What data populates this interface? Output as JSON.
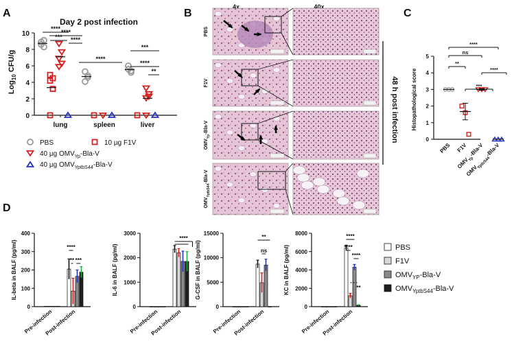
{
  "colors": {
    "gray": "#9a9a9a",
    "red": "#d62020",
    "blue": "#2030c8",
    "green": "#20b040",
    "tissue": "#d9b2c8",
    "tissue_dark": "#b46a9c"
  },
  "panels": {
    "A": "A",
    "B": "B",
    "C": "C",
    "D": "D"
  },
  "panel_a": {
    "title": "Day 2 post infection",
    "ylabel": "Log",
    "ylabel_sub": "10",
    "ylabel_tail": " CFU/g",
    "yticks": [
      "0",
      "2",
      "4",
      "6",
      "8",
      "10"
    ],
    "categories": [
      "lung",
      "spleen",
      "liver"
    ],
    "sig": [
      "****",
      "***",
      "****",
      "****",
      "****",
      "***",
      "****",
      "**"
    ],
    "legend": [
      {
        "label": "PBS"
      },
      {
        "label": "10 µg F1V"
      },
      {
        "label": "40 µg OMV",
        "sub": "Yp",
        "tail": "-Bla-V"
      },
      {
        "label": "40 µg OMV",
        "sub": "YptbS44",
        "tail": "-Bla-V"
      }
    ]
  },
  "panel_b": {
    "col_headers": [
      "4x",
      "40x"
    ],
    "row_labels": [
      "PBS",
      "F1V",
      "OMV",
      "OMV"
    ],
    "row_label_subs": [
      "",
      "",
      "Yp",
      "YptbS44"
    ],
    "row_label_tails": [
      "",
      "",
      "-Bla-V",
      "-Bla-V"
    ],
    "side_label": "48 h post infection"
  },
  "panel_c": {
    "ylabel": "Histopathological score",
    "yticks": [
      "0",
      "1",
      "2",
      "3",
      "4",
      "5"
    ],
    "xlabels": [
      "PBS",
      "F1V",
      "OMV",
      "OMV"
    ],
    "xlabel_subs": [
      "",
      "",
      "Yp",
      "YptbS44"
    ],
    "xlabel_tails": [
      "",
      "",
      "-Bla-V",
      "-Bla-V"
    ],
    "sig": [
      "****",
      "ns",
      "**",
      "***",
      "****"
    ]
  },
  "panel_d": {
    "x_groups": [
      "Pre-infection",
      "Post-infection"
    ],
    "sig": [
      "****",
      "**",
      "***",
      "****",
      "ns",
      "**",
      "****",
      "****",
      "****",
      "**"
    ],
    "legend": [
      {
        "label": "PBS"
      },
      {
        "label": "F1V"
      },
      {
        "label": "OMV",
        "sub": "YP",
        "tail": "-Bla-V"
      },
      {
        "label": "OMV",
        "sub": "YptbS44",
        "tail": "-Bla-V"
      }
    ]
  },
  "chart_data": [
    {
      "type": "scatter",
      "title": "Day 2 post infection",
      "ylabel": "Log10 CFU/g",
      "ylim": [
        0,
        10
      ],
      "categories": [
        "lung",
        "spleen",
        "liver"
      ],
      "series": [
        {
          "name": "PBS",
          "values": [
            [
              8.9,
              8.3,
              8.6,
              9.1
            ],
            [
              5.3,
              4.6,
              4.1,
              4.8
            ],
            [
              6.0,
              5.2,
              5.6,
              5.4
            ]
          ]
        },
        {
          "name": "10 µg F1V",
          "values": [
            [
              4.9,
              4.5,
              4.2,
              3.2,
              0
            ],
            [
              0
            ],
            [
              0
            ]
          ]
        },
        {
          "name": "40 µg OMVYp-Bla-V",
          "values": [
            [
              8.7,
              7.7,
              6.9,
              6.3,
              5.9
            ],
            [
              0
            ],
            [
              3.3,
              2.6,
              2.1,
              2.3,
              0
            ]
          ]
        },
        {
          "name": "40 µg OMVYptbS44-Bla-V",
          "values": [
            [
              0
            ],
            [
              0
            ],
            [
              0
            ]
          ]
        }
      ]
    },
    {
      "type": "scatter",
      "ylabel": "Histopathological score",
      "ylim": [
        0,
        5
      ],
      "categories": [
        "PBS",
        "F1V",
        "OMVYp-Bla-V",
        "OMVYptbS44-Bla-V"
      ],
      "series": [
        {
          "values": [
            [
              3,
              3,
              3
            ],
            [
              2,
              1.6,
              0.3
            ],
            [
              3,
              3,
              3
            ],
            [
              0,
              0,
              0
            ]
          ],
          "means": [
            3,
            1.67,
            3,
            0
          ],
          "errors": [
            0,
            0.5,
            0.05,
            0
          ]
        }
      ]
    },
    {
      "type": "bar",
      "ylabel": "IL-beta in BALF (pg/ml)",
      "ylim": [
        0,
        400
      ],
      "categories": [
        "Pre-infection",
        "Post-infection"
      ],
      "series": [
        {
          "name": "PBS",
          "values": [
            2,
            205
          ],
          "errors": [
            0,
            55
          ]
        },
        {
          "name": "F1V",
          "values": [
            2,
            85
          ],
          "errors": [
            0,
            70
          ]
        },
        {
          "name": "OMVYP-Bla-V",
          "values": [
            2,
            165
          ],
          "errors": [
            0,
            35
          ]
        },
        {
          "name": "OMVYptbS44-Bla-V",
          "values": [
            2,
            188
          ],
          "errors": [
            0,
            30
          ]
        }
      ]
    },
    {
      "type": "bar",
      "ylabel": "IL-6 in BALF (pg/ml)",
      "ylim": [
        0,
        3000
      ],
      "categories": [
        "Pre-infection",
        "Post-infection"
      ],
      "series": [
        {
          "name": "PBS",
          "values": [
            0,
            2350
          ],
          "errors": [
            0,
            150
          ]
        },
        {
          "name": "F1V",
          "values": [
            0,
            2200
          ],
          "errors": [
            0,
            170
          ]
        },
        {
          "name": "OMVYP-Bla-V",
          "values": [
            0,
            1850
          ],
          "errors": [
            0,
            420
          ]
        },
        {
          "name": "OMVYptbS44-Bla-V",
          "values": [
            0,
            1850
          ],
          "errors": [
            0,
            400
          ]
        }
      ]
    },
    {
      "type": "bar",
      "ylabel": "G-CSF in BALF (pg/ml)",
      "ylim": [
        0,
        15000
      ],
      "categories": [
        "Pre-infection",
        "Post-infection"
      ],
      "series": [
        {
          "name": "PBS",
          "values": [
            0,
            8700
          ],
          "errors": [
            0,
            800
          ]
        },
        {
          "name": "F1V",
          "values": [
            0,
            4900
          ],
          "errors": [
            0,
            2000
          ]
        },
        {
          "name": "OMVYP-Bla-V",
          "values": [
            0,
            8500
          ],
          "errors": [
            0,
            1200
          ]
        },
        {
          "name": "OMVYptbS44-Bla-V",
          "values": [
            0,
            0
          ],
          "errors": [
            0,
            0
          ]
        }
      ]
    },
    {
      "type": "bar",
      "ylabel": "KC in BALF (pg/ml)",
      "ylim": [
        0,
        8000
      ],
      "categories": [
        "Pre-infection",
        "Post-infection"
      ],
      "series": [
        {
          "name": "PBS",
          "values": [
            0,
            6400
          ],
          "errors": [
            0,
            300
          ]
        },
        {
          "name": "F1V",
          "values": [
            0,
            1200
          ],
          "errors": [
            0,
            250
          ]
        },
        {
          "name": "OMVYP-Bla-V",
          "values": [
            0,
            4300
          ],
          "errors": [
            0,
            300
          ]
        },
        {
          "name": "OMVYptbS44-Bla-V",
          "values": [
            0,
            150
          ],
          "errors": [
            0,
            60
          ]
        }
      ]
    }
  ]
}
